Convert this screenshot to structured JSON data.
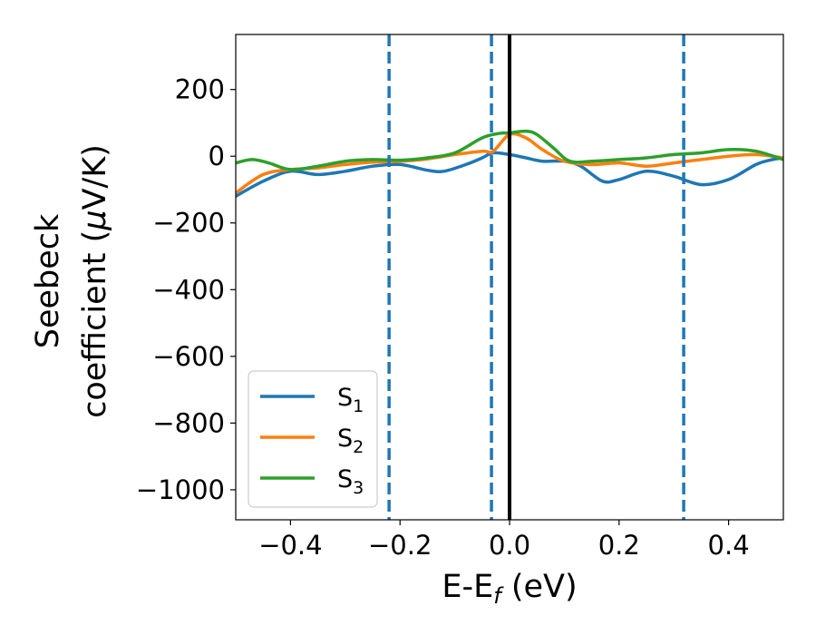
{
  "chart_data": {
    "type": "line",
    "xlabel": {
      "base": "E-E",
      "sub": "f",
      "tail": " (eV)"
    },
    "ylabel": {
      "line1": "Seebeck",
      "line2_pre": "coefficient  (",
      "mu": "μ",
      "line2_post": "V/K)"
    },
    "xlim": [
      -0.5,
      0.5
    ],
    "ylim": [
      -1090,
      365
    ],
    "xticks": [
      -0.4,
      -0.2,
      0.0,
      0.2,
      0.4
    ],
    "xtick_labels": [
      "−0.4",
      "−0.2",
      "0.0",
      "0.2",
      "0.4"
    ],
    "yticks": [
      200,
      0,
      -200,
      -400,
      -600,
      -800,
      -1000
    ],
    "ytick_labels": [
      "200",
      "0",
      "−200",
      "−400",
      "−600",
      "−800",
      "−1000"
    ],
    "legend_position": "lower-left",
    "grid": false,
    "series": [
      {
        "name": "S",
        "name_sub": "1",
        "color": "#1f77b4",
        "x": [
          -0.5,
          -0.45,
          -0.4,
          -0.35,
          -0.3,
          -0.25,
          -0.2,
          -0.15,
          -0.12,
          -0.08,
          -0.05,
          -0.03,
          0.0,
          0.03,
          0.06,
          0.1,
          0.13,
          0.17,
          0.2,
          0.25,
          0.3,
          0.35,
          0.4,
          0.45,
          0.48,
          0.5
        ],
        "y": [
          -120,
          -75,
          -45,
          -55,
          -45,
          -30,
          -25,
          -42,
          -45,
          -25,
          -5,
          10,
          5,
          -5,
          -15,
          -15,
          -30,
          -75,
          -70,
          -45,
          -60,
          -85,
          -70,
          -25,
          -10,
          -5
        ]
      },
      {
        "name": "S",
        "name_sub": "2",
        "color": "#ff7f0e",
        "x": [
          -0.5,
          -0.45,
          -0.4,
          -0.35,
          -0.3,
          -0.25,
          -0.2,
          -0.15,
          -0.1,
          -0.05,
          -0.03,
          0.0,
          0.03,
          0.06,
          0.1,
          0.15,
          0.2,
          0.25,
          0.3,
          0.35,
          0.4,
          0.45,
          0.5
        ],
        "y": [
          -110,
          -55,
          -40,
          -35,
          -25,
          -18,
          -15,
          -8,
          5,
          15,
          15,
          65,
          55,
          20,
          -15,
          -25,
          -20,
          -30,
          -20,
          -10,
          0,
          5,
          -5
        ]
      },
      {
        "name": "S",
        "name_sub": "3",
        "color": "#2ca02c",
        "x": [
          -0.5,
          -0.47,
          -0.44,
          -0.4,
          -0.35,
          -0.3,
          -0.25,
          -0.2,
          -0.15,
          -0.1,
          -0.05,
          -0.02,
          0.0,
          0.03,
          0.05,
          0.08,
          0.11,
          0.15,
          0.2,
          0.25,
          0.3,
          0.35,
          0.4,
          0.45,
          0.5
        ],
        "y": [
          -20,
          -10,
          -20,
          -40,
          -30,
          -15,
          -10,
          -12,
          -5,
          10,
          55,
          68,
          70,
          75,
          65,
          25,
          -15,
          -15,
          -10,
          -5,
          5,
          10,
          20,
          15,
          -10
        ]
      }
    ],
    "reference_lines": {
      "solid": {
        "x": 0.0,
        "color": "#000000"
      },
      "dashed": {
        "x": [
          -0.22,
          -0.033,
          0.318
        ],
        "color": "#1f77b4"
      }
    }
  }
}
